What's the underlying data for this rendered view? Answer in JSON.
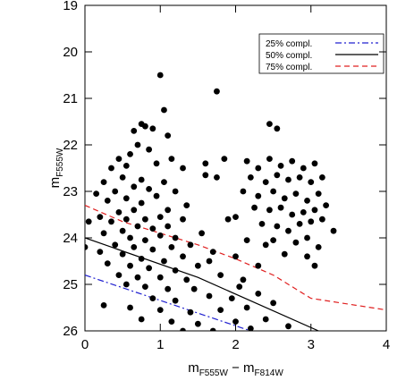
{
  "chart_data": {
    "type": "scatter",
    "xlabel": {
      "parts": [
        "m",
        "F555W",
        " − ",
        "m",
        "F814W"
      ],
      "sub": [
        false,
        true,
        false,
        false,
        true
      ]
    },
    "ylabel": {
      "parts": [
        "m",
        "F555W"
      ],
      "sub": [
        false,
        true
      ]
    },
    "xlim": [
      0,
      4
    ],
    "xticks": [
      0,
      1,
      2,
      3,
      4
    ],
    "ylim": [
      26,
      19
    ],
    "yticks": [
      19,
      20,
      21,
      22,
      23,
      24,
      25,
      26
    ],
    "legend": "upper right",
    "points": {
      "color": "#000000",
      "x": [
        1.0,
        1.75,
        1.05,
        0.75,
        0.8,
        0.65,
        0.9,
        1.1,
        0.7,
        0.6,
        0.85,
        1.15,
        0.45,
        0.35,
        0.55,
        0.95,
        1.3,
        1.6,
        1.6,
        1.85,
        1.75,
        2.45,
        2.55,
        0.25,
        0.5,
        0.75,
        1.05,
        0.65,
        0.85,
        0.4,
        0.15,
        0.3,
        0.55,
        0.75,
        0.95,
        1.2,
        1.35,
        1.1,
        0.65,
        0.45,
        0.2,
        0.05,
        0.35,
        0.55,
        0.8,
        1.0,
        1.3,
        0.7,
        0.9,
        1.1,
        0.5,
        0.25,
        0.6,
        0.8,
        1.0,
        1.2,
        0.4,
        0.65,
        0.9,
        1.15,
        1.4,
        0.2,
        0.5,
        0.75,
        1.05,
        1.3,
        0.3,
        0.6,
        0.85,
        1.2,
        1.5,
        1.65,
        0.45,
        0.7,
        1.0,
        1.35,
        1.8,
        0.55,
        0.8,
        1.1,
        1.45,
        2.1,
        0.25,
        0.9,
        1.2,
        1.65,
        1.95,
        2.3,
        0.6,
        1.0,
        1.4,
        1.8,
        2.15,
        2.5,
        0.75,
        1.15,
        1.5,
        2.0,
        2.4,
        2.7,
        1.3,
        1.7,
        2.2,
        0.0,
        1.55,
        1.7,
        2.0,
        2.3,
        2.05,
        1.9,
        2.15,
        2.3,
        2.45,
        2.6,
        2.75,
        2.9,
        3.05,
        2.2,
        2.4,
        2.55,
        2.7,
        2.85,
        3.0,
        3.15,
        2.1,
        2.3,
        2.5,
        2.65,
        2.8,
        2.95,
        3.1,
        2.25,
        2.45,
        2.6,
        2.75,
        2.9,
        3.05,
        3.2,
        2.0,
        2.35,
        2.55,
        2.7,
        2.85,
        3.0,
        3.15,
        2.15,
        2.5,
        2.8,
        2.95,
        3.1,
        3.3,
        2.65,
        2.95,
        3.05,
        2.4
      ],
      "values": [
        20.5,
        20.85,
        21.25,
        21.55,
        21.6,
        21.7,
        21.65,
        21.8,
        22.0,
        22.2,
        22.1,
        22.3,
        22.3,
        22.5,
        22.45,
        22.4,
        22.5,
        22.4,
        22.65,
        22.3,
        22.7,
        21.55,
        21.65,
        22.8,
        22.7,
        22.75,
        22.8,
        22.9,
        22.95,
        23.0,
        23.05,
        23.2,
        23.15,
        23.25,
        23.1,
        23.0,
        23.3,
        23.4,
        23.4,
        23.45,
        23.55,
        23.65,
        23.65,
        23.6,
        23.6,
        23.55,
        23.6,
        23.75,
        23.8,
        23.75,
        23.85,
        23.9,
        24.0,
        24.05,
        23.95,
        24.0,
        24.15,
        24.2,
        24.25,
        24.2,
        24.15,
        24.3,
        24.35,
        24.45,
        24.5,
        24.4,
        24.55,
        24.6,
        24.65,
        24.7,
        24.6,
        24.5,
        24.8,
        24.85,
        24.85,
        24.9,
        24.8,
        25.0,
        25.05,
        25.1,
        25.1,
        24.9,
        25.45,
        25.3,
        25.35,
        25.25,
        25.3,
        25.2,
        25.5,
        25.55,
        25.6,
        25.55,
        25.5,
        25.4,
        25.75,
        25.8,
        25.85,
        25.8,
        25.75,
        25.9,
        26.0,
        26.0,
        25.95,
        24.2,
        23.9,
        24.3,
        24.4,
        24.6,
        25.05,
        23.6,
        22.35,
        22.5,
        22.3,
        22.45,
        22.35,
        22.5,
        22.4,
        22.7,
        22.8,
        22.65,
        22.75,
        22.7,
        22.8,
        22.7,
        23.0,
        23.1,
        23.0,
        23.15,
        23.05,
        23.2,
        23.05,
        23.35,
        23.4,
        23.35,
        23.5,
        23.45,
        23.4,
        23.3,
        23.55,
        23.7,
        23.75,
        23.85,
        23.7,
        23.65,
        23.6,
        24.05,
        24.05,
        24.1,
        24.0,
        24.2,
        23.85,
        24.35,
        24.4,
        24.6,
        24.15
      ]
    },
    "series": [
      {
        "name": "25% compl.",
        "color": "#2020d0",
        "linestyle": "dashdot",
        "x": [
          0,
          2.2
        ],
        "values": [
          24.8,
          26.0
        ]
      },
      {
        "name": "50% compl.",
        "color": "#000000",
        "linestyle": "solid",
        "x": [
          0,
          1.5,
          3.1
        ],
        "values": [
          24.0,
          24.85,
          26.0
        ]
      },
      {
        "name": "75% compl.",
        "color": "#e02020",
        "linestyle": "dashed",
        "x": [
          0,
          0.5,
          1,
          1.5,
          2,
          2.5,
          3,
          4
        ],
        "values": [
          23.3,
          23.65,
          23.9,
          24.15,
          24.45,
          24.8,
          25.3,
          25.55
        ]
      }
    ]
  }
}
